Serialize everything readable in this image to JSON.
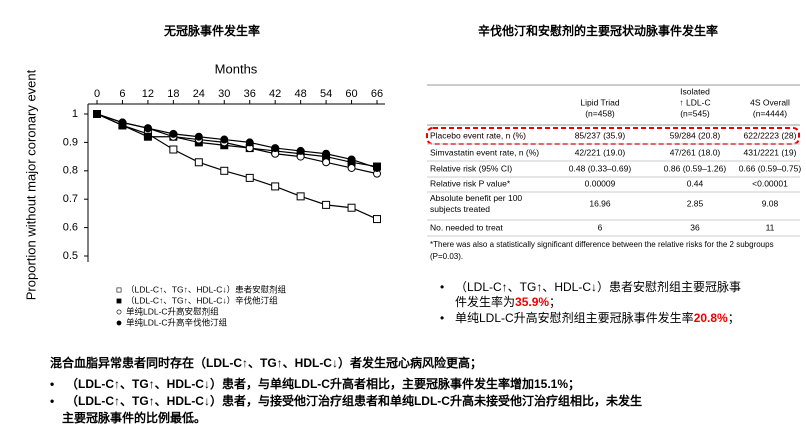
{
  "chart_data": {
    "type": "line",
    "title": "无冠脉事件发生率",
    "x_label": "Months",
    "y_label": "Proportion without major coronary event",
    "x": [
      0,
      6,
      12,
      18,
      24,
      30,
      36,
      42,
      48,
      54,
      60,
      66
    ],
    "xlim": [
      0,
      66
    ],
    "xticks": [
      0,
      6,
      12,
      18,
      24,
      30,
      36,
      42,
      48,
      54,
      60,
      66
    ],
    "ylim": [
      0.5,
      1
    ],
    "yticks": [
      1,
      0.9,
      0.8,
      0.7,
      0.6,
      0.5
    ],
    "series": [
      {
        "name": "（LDL-C↑、TG↑、HDL-C↓）患者安慰剂组",
        "color": "#000000",
        "marker": "square-open",
        "values": [
          1,
          0.96,
          0.93,
          0.875,
          0.83,
          0.8,
          0.775,
          0.745,
          0.71,
          0.68,
          0.67,
          0.63
        ]
      },
      {
        "name": "（LDL-C↑、TG↑、HDL-C↓）辛伐他汀组",
        "color": "#000000",
        "marker": "square-filled",
        "values": [
          1,
          0.96,
          0.92,
          0.92,
          0.9,
          0.89,
          0.88,
          0.87,
          0.86,
          0.85,
          0.83,
          0.815
        ]
      },
      {
        "name": "单纯LDL-C升高安慰剂组",
        "color": "#000000",
        "marker": "circle-open",
        "values": [
          1,
          0.97,
          0.95,
          0.92,
          0.91,
          0.9,
          0.88,
          0.86,
          0.85,
          0.83,
          0.81,
          0.79
        ]
      },
      {
        "name": "单纯LDL-C升高辛伐他汀组",
        "color": "#000000",
        "marker": "circle-filled",
        "values": [
          1,
          0.97,
          0.95,
          0.93,
          0.92,
          0.91,
          0.9,
          0.88,
          0.87,
          0.86,
          0.84,
          0.81
        ]
      }
    ]
  },
  "table": {
    "title": "辛伐他汀和安慰剂的主要冠状动脉事件发生率",
    "columns": [
      [
        "Lipid Triad",
        "(n=458)"
      ],
      [
        "Isolated",
        "↑ LDL-C",
        "(n=545)"
      ],
      [
        "4S Overall",
        "(n=4444)"
      ]
    ],
    "rows": [
      [
        [
          "Placebo event rate, n (%)"
        ],
        "85/237 (35.9)",
        "59/284 (20.8)",
        "622/2223 (28)"
      ],
      [
        [
          "Simvastatin event rate, n (%)"
        ],
        "42/221 (19.0)",
        "47/261 (18.0)",
        "431/2221 (19)"
      ],
      [
        [
          "Relative risk (95% CI)"
        ],
        "0.48 (0.33–0.69)",
        "0.86 (0.59–1.26)",
        "0.66 (0.59–0.75)"
      ],
      [
        [
          "Relative risk P value*"
        ],
        "0.00009",
        "0.44",
        "<0.00001"
      ],
      [
        [
          "Absolute benefit per 100",
          "subjects treated"
        ],
        "16.96",
        "2.85",
        "9.08"
      ],
      [
        [
          "No. needed to treat"
        ],
        "6",
        "36",
        "11"
      ]
    ],
    "footnote": [
      "*There was also a statistically significant difference between the relative risks for the 2 subgroups",
      "(P=0.03)."
    ]
  },
  "notes": [
    {
      "lines": [
        "（LDL-C↑、TG↑、HDL-C↓）患者安慰剂组主要冠脉事",
        "件发生率为"
      ],
      "highlight": "35.9%",
      "end": "；"
    },
    {
      "lines": [
        "单纯LDL-C升高安慰剂组主要冠脉事件发生率"
      ],
      "highlight": "20.8%",
      "end": "；"
    }
  ],
  "summary": {
    "heading": "混合血脂异常患者同时存在（LDL-C↑、TG↑、HDL-C↓）者发生冠心病风险更高；",
    "bullets": [
      [
        "（LDL-C↑、TG↑、HDL-C↓）患者，与单纯LDL-C升高者相比，主要冠脉事件发生率增加15.1%；"
      ],
      [
        "（LDL-C↑、TG↑、HDL-C↓）患者，与接受他汀治疗组患者和单纯LDL-C升高未接受他汀治疗组相比，未发生",
        "主要冠脉事件的比例最低。"
      ]
    ]
  }
}
